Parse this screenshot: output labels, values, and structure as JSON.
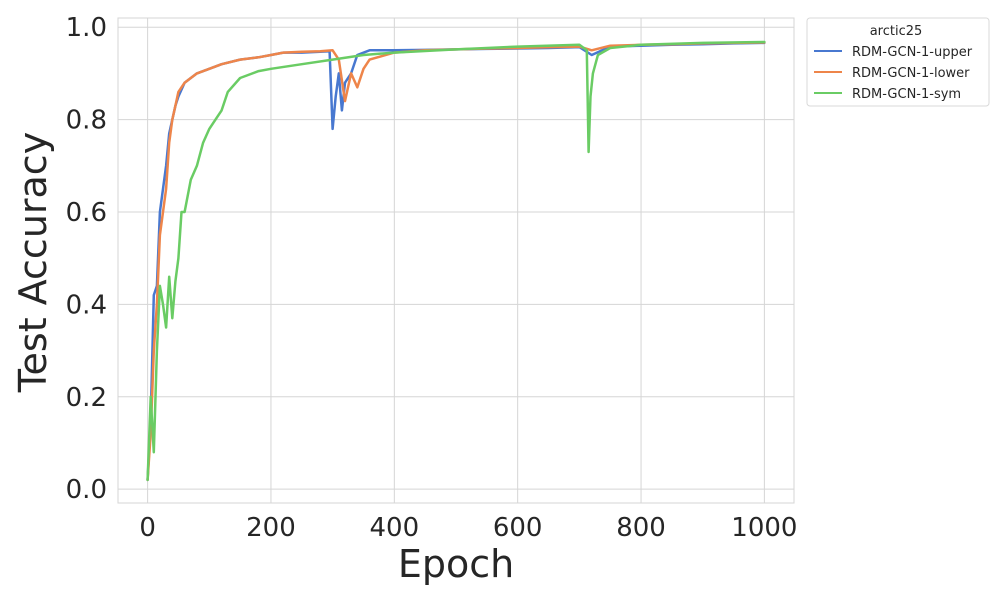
{
  "chart_data": {
    "type": "line",
    "xlabel": "Epoch",
    "ylabel": "Test Accuracy",
    "xlim": [
      -48,
      1048
    ],
    "ylim": [
      -0.03,
      1.02
    ],
    "x_ticks": [
      0,
      200,
      400,
      600,
      800,
      1000
    ],
    "y_ticks": [
      0.0,
      0.2,
      0.4,
      0.6,
      0.8,
      1.0
    ],
    "x_tick_labels": [
      "0",
      "200",
      "400",
      "600",
      "800",
      "1000"
    ],
    "y_tick_labels": [
      "0.0",
      "0.2",
      "0.4",
      "0.6",
      "0.8",
      "1.0"
    ],
    "grid": true,
    "legend": {
      "title": "arctic25",
      "placement": "outside-top-right"
    },
    "series": [
      {
        "name": "RDM-GCN-1-upper",
        "color": "#4878d0",
        "x": [
          0,
          5,
          10,
          15,
          20,
          25,
          30,
          35,
          40,
          45,
          50,
          60,
          70,
          80,
          100,
          120,
          150,
          180,
          200,
          220,
          250,
          280,
          295,
          300,
          305,
          310,
          315,
          320,
          330,
          340,
          360,
          400,
          450,
          500,
          550,
          600,
          650,
          700,
          720,
          750,
          800,
          850,
          900,
          950,
          1000
        ],
        "y": [
          0.02,
          0.15,
          0.42,
          0.44,
          0.6,
          0.65,
          0.7,
          0.77,
          0.8,
          0.83,
          0.85,
          0.88,
          0.89,
          0.9,
          0.91,
          0.92,
          0.93,
          0.935,
          0.94,
          0.945,
          0.945,
          0.947,
          0.948,
          0.78,
          0.85,
          0.9,
          0.82,
          0.88,
          0.9,
          0.94,
          0.95,
          0.95,
          0.951,
          0.952,
          0.953,
          0.954,
          0.955,
          0.957,
          0.94,
          0.958,
          0.96,
          0.962,
          0.963,
          0.965,
          0.966
        ]
      },
      {
        "name": "RDM-GCN-1-lower",
        "color": "#ee854a",
        "x": [
          0,
          5,
          10,
          15,
          20,
          25,
          30,
          35,
          40,
          45,
          50,
          60,
          70,
          80,
          100,
          120,
          150,
          180,
          200,
          220,
          250,
          280,
          300,
          310,
          320,
          330,
          340,
          350,
          360,
          400,
          450,
          500,
          550,
          600,
          650,
          700,
          720,
          750,
          800,
          850,
          900,
          950,
          1000
        ],
        "y": [
          0.02,
          0.12,
          0.3,
          0.4,
          0.55,
          0.6,
          0.65,
          0.75,
          0.8,
          0.83,
          0.86,
          0.88,
          0.89,
          0.9,
          0.91,
          0.92,
          0.93,
          0.935,
          0.94,
          0.945,
          0.947,
          0.948,
          0.95,
          0.93,
          0.84,
          0.9,
          0.87,
          0.91,
          0.93,
          0.945,
          0.95,
          0.952,
          0.954,
          0.955,
          0.957,
          0.958,
          0.95,
          0.96,
          0.962,
          0.963,
          0.965,
          0.966,
          0.967
        ]
      },
      {
        "name": "RDM-GCN-1-sym",
        "color": "#6acc64",
        "x": [
          0,
          5,
          10,
          15,
          20,
          25,
          30,
          35,
          40,
          45,
          50,
          55,
          60,
          70,
          80,
          90,
          100,
          110,
          120,
          130,
          150,
          180,
          200,
          250,
          300,
          350,
          400,
          500,
          600,
          700,
          712,
          715,
          718,
          722,
          730,
          750,
          800,
          900,
          1000
        ],
        "y": [
          0.02,
          0.2,
          0.08,
          0.3,
          0.44,
          0.4,
          0.35,
          0.46,
          0.37,
          0.45,
          0.5,
          0.6,
          0.6,
          0.67,
          0.7,
          0.75,
          0.78,
          0.8,
          0.82,
          0.86,
          0.89,
          0.905,
          0.91,
          0.92,
          0.93,
          0.94,
          0.945,
          0.952,
          0.958,
          0.962,
          0.95,
          0.73,
          0.85,
          0.9,
          0.94,
          0.955,
          0.962,
          0.966,
          0.968
        ]
      }
    ]
  }
}
